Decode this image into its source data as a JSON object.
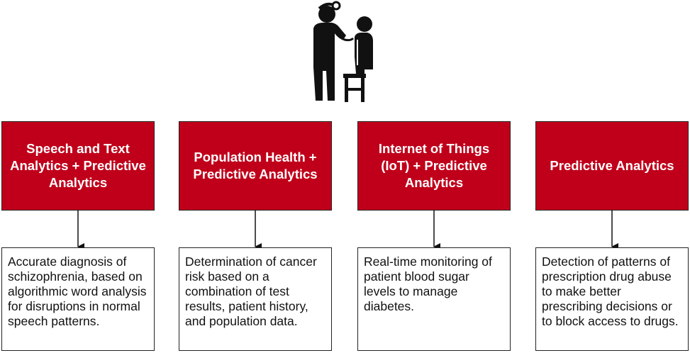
{
  "icon": "doctor-patient-icon",
  "colors": {
    "accent": "#c0001a",
    "text": "#111111",
    "border": "#222222"
  },
  "columns": [
    {
      "title": "Speech and Text Analytics + Predictive Analytics",
      "description": "Accurate diagnosis of schizophrenia, based on algorithmic word analysis for disruptions in normal speech patterns."
    },
    {
      "title": "Population Health + Predictive Analytics",
      "description": "Determination of cancer risk based on a combination of test results, patient history, and population data."
    },
    {
      "title": "Internet of Things (IoT) + Predictive Analytics",
      "description": "Real-time monitoring of patient blood sugar levels to manage diabetes."
    },
    {
      "title": "Predictive Analytics",
      "description": "Detection of patterns of prescription drug abuse to make better prescribing decisions or to block access to drugs."
    }
  ]
}
